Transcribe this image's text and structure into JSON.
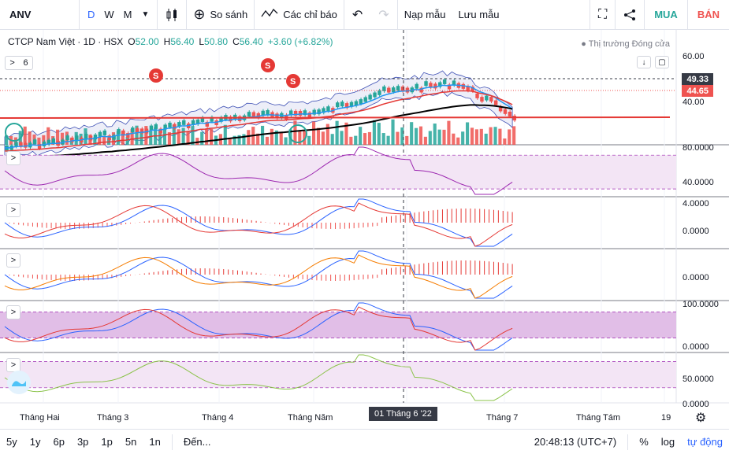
{
  "toolbar": {
    "symbol": "ANV",
    "intervals": [
      "D",
      "W",
      "M"
    ],
    "active_interval": "D",
    "compare_label": "So sánh",
    "indicators_label": "Các chỉ báo",
    "load_layout_label": "Nạp mẫu",
    "save_layout_label": "Lưu mẫu",
    "buy_label": "MUA",
    "sell_label": "BÁN",
    "icons": [
      "chevron-down-icon",
      "candles-icon",
      "plus-circle-icon",
      "indicators-icon",
      "undo-icon",
      "redo-icon",
      "fullscreen-icon",
      "share-icon"
    ]
  },
  "legend": {
    "title": "CTCP Nam Việt · 1D · HSX",
    "open_label": "O",
    "open": "52.00",
    "high_label": "H",
    "high": "56.40",
    "low_label": "L",
    "low": "50.80",
    "close_label": "C",
    "close": "56.40",
    "change": "+3.60 (+6.82%)",
    "indicator_count": "6",
    "market_status": "Thị trường Đóng cửa"
  },
  "price_axis": {
    "main_ticks": [
      "60.00",
      "40.00"
    ],
    "last_price_tag": "49.33",
    "current_price_tag": "44.65",
    "pane_ticks": [
      [
        "80.0000",
        "40.0000"
      ],
      [
        "4.0000",
        "0.0000"
      ],
      [
        "0.0000"
      ],
      [
        "100.0000",
        "0.0000"
      ],
      [
        "50.0000",
        "0.0000"
      ]
    ]
  },
  "time_axis": {
    "labels": [
      "Tháng Hai",
      "Tháng 3",
      "Tháng 4",
      "Tháng Năm",
      "Tháng 7",
      "Tháng Tám",
      "19"
    ],
    "crosshair_label": "01 Tháng 6 '22"
  },
  "bottombar": {
    "ranges": [
      "5y",
      "1y",
      "6p",
      "3p",
      "1p",
      "5n",
      "1n"
    ],
    "goto_label": "Đến...",
    "clock": "20:48:13 (UTC+7)",
    "percent_label": "%",
    "log_label": "log",
    "auto_label": "tự động"
  },
  "signals": [
    "S",
    "S",
    "S"
  ],
  "colors": {
    "up": "#26a69a",
    "down": "#ef5350",
    "bb_fill": "#e8eaf6",
    "ema_blue": "#2196f3",
    "ema_red": "#e53935",
    "ma_black": "#000000",
    "rsi_bg": "#f3e5f5",
    "accent": "#2962ff"
  }
}
